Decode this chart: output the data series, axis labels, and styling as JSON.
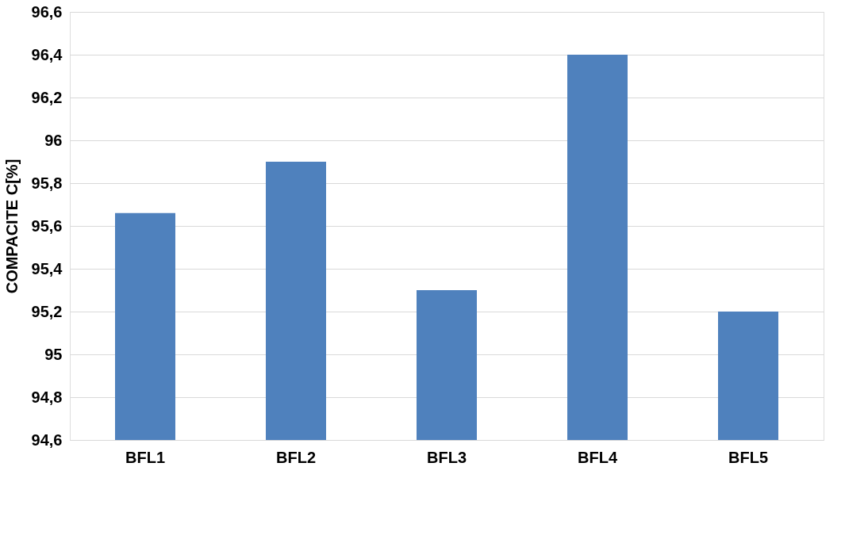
{
  "chart_data": {
    "type": "bar",
    "ylabel": "COMPACITE C[%]",
    "categories": [
      "BFL1",
      "BFL2",
      "BFL3",
      "BFL4",
      "BFL5"
    ],
    "values": [
      95.66,
      95.9,
      95.3,
      96.4,
      95.2
    ],
    "color": "#4f81bd",
    "ylim": [
      94.6,
      96.6
    ],
    "yticks": [
      {
        "value": 94.6,
        "label": "94,6"
      },
      {
        "value": 94.8,
        "label": "94,8"
      },
      95,
      {
        "value": 95.2,
        "label": "95,2"
      },
      {
        "value": 95.4,
        "label": "95,4"
      },
      {
        "value": 95.6,
        "label": "95,6"
      },
      {
        "value": 95.8,
        "label": "95,8"
      },
      96,
      {
        "value": 96.2,
        "label": "96,2"
      },
      {
        "value": 96.4,
        "label": "96,4"
      },
      {
        "value": 96.6,
        "label": "96,6"
      }
    ],
    "grid": "y"
  }
}
